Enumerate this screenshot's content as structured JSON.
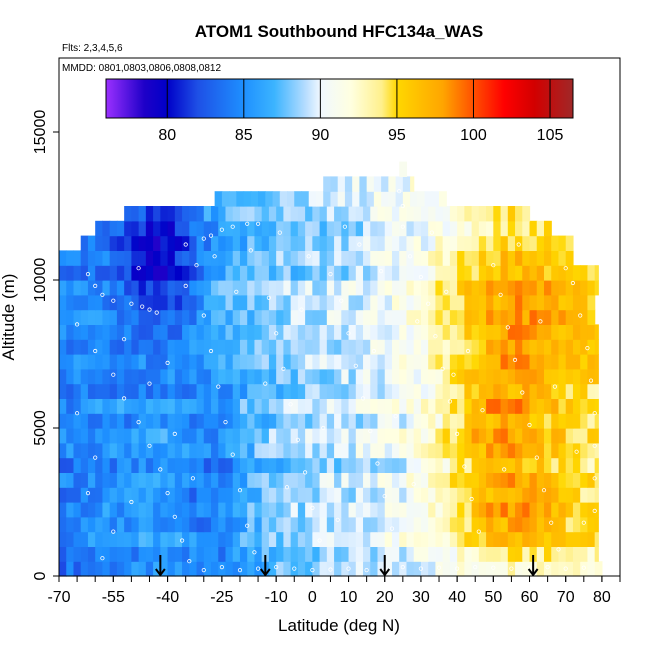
{
  "chart_data": {
    "type": "heatmap",
    "title": "ATOM1 Southbound HFC134a_WAS",
    "flights_note": "Flts: 2,3,4,5,6",
    "dates_note": "MMDD: 0801,0803,0806,0808,0812",
    "xlabel": "Latitude (deg N)",
    "ylabel": "Altitude (m)",
    "xlim": [
      -70,
      85
    ],
    "ylim": [
      0,
      17500
    ],
    "x_ticks": [
      -70,
      -55,
      -40,
      -25,
      -10,
      0,
      10,
      20,
      30,
      40,
      50,
      60,
      70,
      80
    ],
    "x_tick_labels": [
      "-70",
      "-55",
      "-40",
      "-25",
      "-10",
      "0",
      "10",
      "20",
      "30",
      "40",
      "50",
      "60",
      "70",
      "80"
    ],
    "y_ticks": [
      0,
      5000,
      10000,
      15000
    ],
    "y_tick_labels": [
      "0",
      "5000",
      "10000",
      "15000"
    ],
    "colorbar": {
      "min": 76,
      "max": 106.5,
      "ticks": [
        80,
        85,
        90,
        95,
        100,
        105
      ],
      "tick_labels": [
        "80",
        "85",
        "90",
        "95",
        "100",
        "105"
      ],
      "stops": [
        {
          "v": 76,
          "c": "#9b30ff"
        },
        {
          "v": 78.5,
          "c": "#1e00c8"
        },
        {
          "v": 80,
          "c": "#0000c8"
        },
        {
          "v": 82,
          "c": "#1e50e6"
        },
        {
          "v": 85,
          "c": "#1e90ff"
        },
        {
          "v": 87,
          "c": "#3cb4ff"
        },
        {
          "v": 89,
          "c": "#b4dcff"
        },
        {
          "v": 90,
          "c": "#f0f8ff"
        },
        {
          "v": 92,
          "c": "#ffffe0"
        },
        {
          "v": 94,
          "c": "#fff08c"
        },
        {
          "v": 95,
          "c": "#ffd700"
        },
        {
          "v": 98,
          "c": "#ffa500"
        },
        {
          "v": 100,
          "c": "#ff5000"
        },
        {
          "v": 102,
          "c": "#ff0000"
        },
        {
          "v": 104,
          "c": "#d20000"
        },
        {
          "v": 106.5,
          "c": "#a02828"
        }
      ]
    },
    "lat_coverage": [
      [
        0,
        -70,
        80
      ],
      [
        500,
        -70,
        79
      ],
      [
        1000,
        -70,
        79
      ],
      [
        1500,
        -70,
        79
      ],
      [
        2000,
        -70,
        79
      ],
      [
        2500,
        -70,
        79
      ],
      [
        3000,
        -70,
        79
      ],
      [
        3500,
        -70,
        79
      ],
      [
        4000,
        -70,
        79
      ],
      [
        4500,
        -70,
        79
      ],
      [
        5000,
        -70,
        79
      ],
      [
        5500,
        -70,
        79
      ],
      [
        6000,
        -70,
        79
      ],
      [
        6500,
        -70,
        79
      ],
      [
        7000,
        -70,
        79
      ],
      [
        7500,
        -70,
        79
      ],
      [
        8000,
        -70,
        79
      ],
      [
        8500,
        -70,
        78
      ],
      [
        9000,
        -70,
        78
      ],
      [
        9500,
        -70,
        79
      ],
      [
        10000,
        -70,
        79
      ],
      [
        10500,
        -70,
        72
      ],
      [
        11000,
        -64,
        72
      ],
      [
        11500,
        -60,
        66
      ],
      [
        12000,
        -52,
        60
      ],
      [
        12500,
        -27,
        37
      ],
      [
        13000,
        3,
        28
      ],
      [
        13500,
        24,
        26
      ]
    ],
    "value_model": {
      "base": 84.0,
      "lat_gradient_per_deg": 0.065,
      "features": [
        {
          "lat": -42,
          "alt": 10500,
          "sigma_lat": 8,
          "sigma_alt": 2000,
          "amp": -6
        },
        {
          "lat": -28,
          "alt": 3000,
          "sigma_lat": 7,
          "sigma_alt": 2500,
          "amp": -3
        },
        {
          "lat": 50,
          "alt": 5000,
          "sigma_lat": 10,
          "sigma_alt": 1500,
          "amp": 4
        },
        {
          "lat": 55,
          "alt": 2200,
          "sigma_lat": 12,
          "sigma_alt": 1200,
          "amp": 5
        },
        {
          "lat": 55,
          "alt": 10000,
          "sigma_lat": 15,
          "sigma_alt": 2000,
          "amp": 3.5
        },
        {
          "lat": 58,
          "alt": 7500,
          "sigma_lat": 15,
          "sigma_alt": 2000,
          "amp": 3
        }
      ]
    },
    "sample_points_lat_alt": [
      [
        -62,
        10200
      ],
      [
        -60,
        9800
      ],
      [
        -58,
        9500
      ],
      [
        -55,
        9300
      ],
      [
        -50,
        9200
      ],
      [
        -47,
        9100
      ],
      [
        -45,
        9000
      ],
      [
        -43,
        8900
      ],
      [
        -35,
        11200
      ],
      [
        -30,
        11400
      ],
      [
        -28,
        11500
      ],
      [
        -25,
        11700
      ],
      [
        -22,
        11800
      ],
      [
        -18,
        11900
      ],
      [
        -15,
        11900
      ],
      [
        -65,
        8500
      ],
      [
        -60,
        7600
      ],
      [
        -55,
        6800
      ],
      [
        -52,
        6000
      ],
      [
        -48,
        5200
      ],
      [
        -45,
        4400
      ],
      [
        -42,
        3600
      ],
      [
        -40,
        2800
      ],
      [
        -38,
        2000
      ],
      [
        -36,
        1200
      ],
      [
        -34,
        500
      ],
      [
        -30,
        200
      ],
      [
        -25,
        300
      ],
      [
        -20,
        200
      ],
      [
        -15,
        250
      ],
      [
        -10,
        300
      ],
      [
        -5,
        250
      ],
      [
        0,
        200
      ],
      [
        5,
        220
      ],
      [
        10,
        250
      ],
      [
        15,
        200
      ],
      [
        20,
        220
      ],
      [
        25,
        300
      ],
      [
        30,
        250
      ],
      [
        35,
        280
      ],
      [
        40,
        250
      ],
      [
        45,
        300
      ],
      [
        50,
        280
      ],
      [
        55,
        250
      ],
      [
        60,
        280
      ],
      [
        65,
        300
      ],
      [
        70,
        250
      ],
      [
        75,
        280
      ],
      [
        -35,
        9800
      ],
      [
        -32,
        10500
      ],
      [
        -30,
        8800
      ],
      [
        -28,
        7600
      ],
      [
        -26,
        6400
      ],
      [
        -24,
        5200
      ],
      [
        -22,
        4100
      ],
      [
        -20,
        2900
      ],
      [
        -18,
        1700
      ],
      [
        -16,
        800
      ],
      [
        -12,
        9400
      ],
      [
        -10,
        8200
      ],
      [
        -8,
        7000
      ],
      [
        -6,
        5800
      ],
      [
        -4,
        4600
      ],
      [
        -2,
        3500
      ],
      [
        0,
        2300
      ],
      [
        2,
        1200
      ],
      [
        5,
        10200
      ],
      [
        8,
        9300
      ],
      [
        10,
        8200
      ],
      [
        12,
        7100
      ],
      [
        14,
        6000
      ],
      [
        16,
        4900
      ],
      [
        18,
        3800
      ],
      [
        20,
        2700
      ],
      [
        22,
        1600
      ],
      [
        25,
        11800
      ],
      [
        27,
        10800
      ],
      [
        30,
        10100
      ],
      [
        32,
        9200
      ],
      [
        34,
        8100
      ],
      [
        36,
        7000
      ],
      [
        38,
        5900
      ],
      [
        40,
        4800
      ],
      [
        42,
        3700
      ],
      [
        44,
        2600
      ],
      [
        46,
        1500
      ],
      [
        50,
        10500
      ],
      [
        52,
        9500
      ],
      [
        54,
        8400
      ],
      [
        56,
        7300
      ],
      [
        58,
        6200
      ],
      [
        60,
        5100
      ],
      [
        62,
        4000
      ],
      [
        64,
        2900
      ],
      [
        66,
        1800
      ],
      [
        68,
        900
      ],
      [
        70,
        10400
      ],
      [
        72,
        9900
      ],
      [
        74,
        8800
      ],
      [
        76,
        7700
      ],
      [
        77,
        6600
      ],
      [
        78,
        5500
      ],
      [
        78,
        4400
      ],
      [
        78,
        3300
      ],
      [
        78,
        2200
      ],
      [
        24,
        13000
      ],
      [
        25,
        12500
      ],
      [
        -45,
        6500
      ],
      [
        -40,
        7200
      ],
      [
        -38,
        4800
      ],
      [
        -33,
        3300
      ],
      [
        -50,
        2500
      ],
      [
        -55,
        1500
      ],
      [
        -60,
        4000
      ],
      [
        -65,
        5500
      ],
      [
        -62,
        2800
      ],
      [
        -58,
        600
      ],
      [
        -52,
        8000
      ],
      [
        -48,
        10400
      ],
      [
        -13,
        6500
      ],
      [
        -7,
        3000
      ],
      [
        -3,
        9000
      ],
      [
        3,
        5000
      ],
      [
        7,
        1900
      ],
      [
        13,
        11200
      ],
      [
        17,
        7600
      ],
      [
        23,
        5400
      ],
      [
        28,
        3100
      ],
      [
        33,
        11600
      ],
      [
        37,
        9600
      ],
      [
        43,
        7600
      ],
      [
        47,
        5600
      ],
      [
        53,
        3600
      ],
      [
        57,
        11200
      ],
      [
        63,
        8600
      ],
      [
        67,
        6400
      ],
      [
        73,
        4200
      ],
      [
        75,
        1800
      ],
      [
        -27,
        10800
      ],
      [
        -21,
        9600
      ],
      [
        -17,
        11000
      ],
      [
        -9,
        11600
      ],
      [
        -1,
        10800
      ],
      [
        9,
        11800
      ],
      [
        19,
        10300
      ],
      [
        29,
        8600
      ],
      [
        39,
        6800
      ]
    ],
    "arrows_lat": [
      -42,
      -13,
      20,
      61
    ]
  }
}
